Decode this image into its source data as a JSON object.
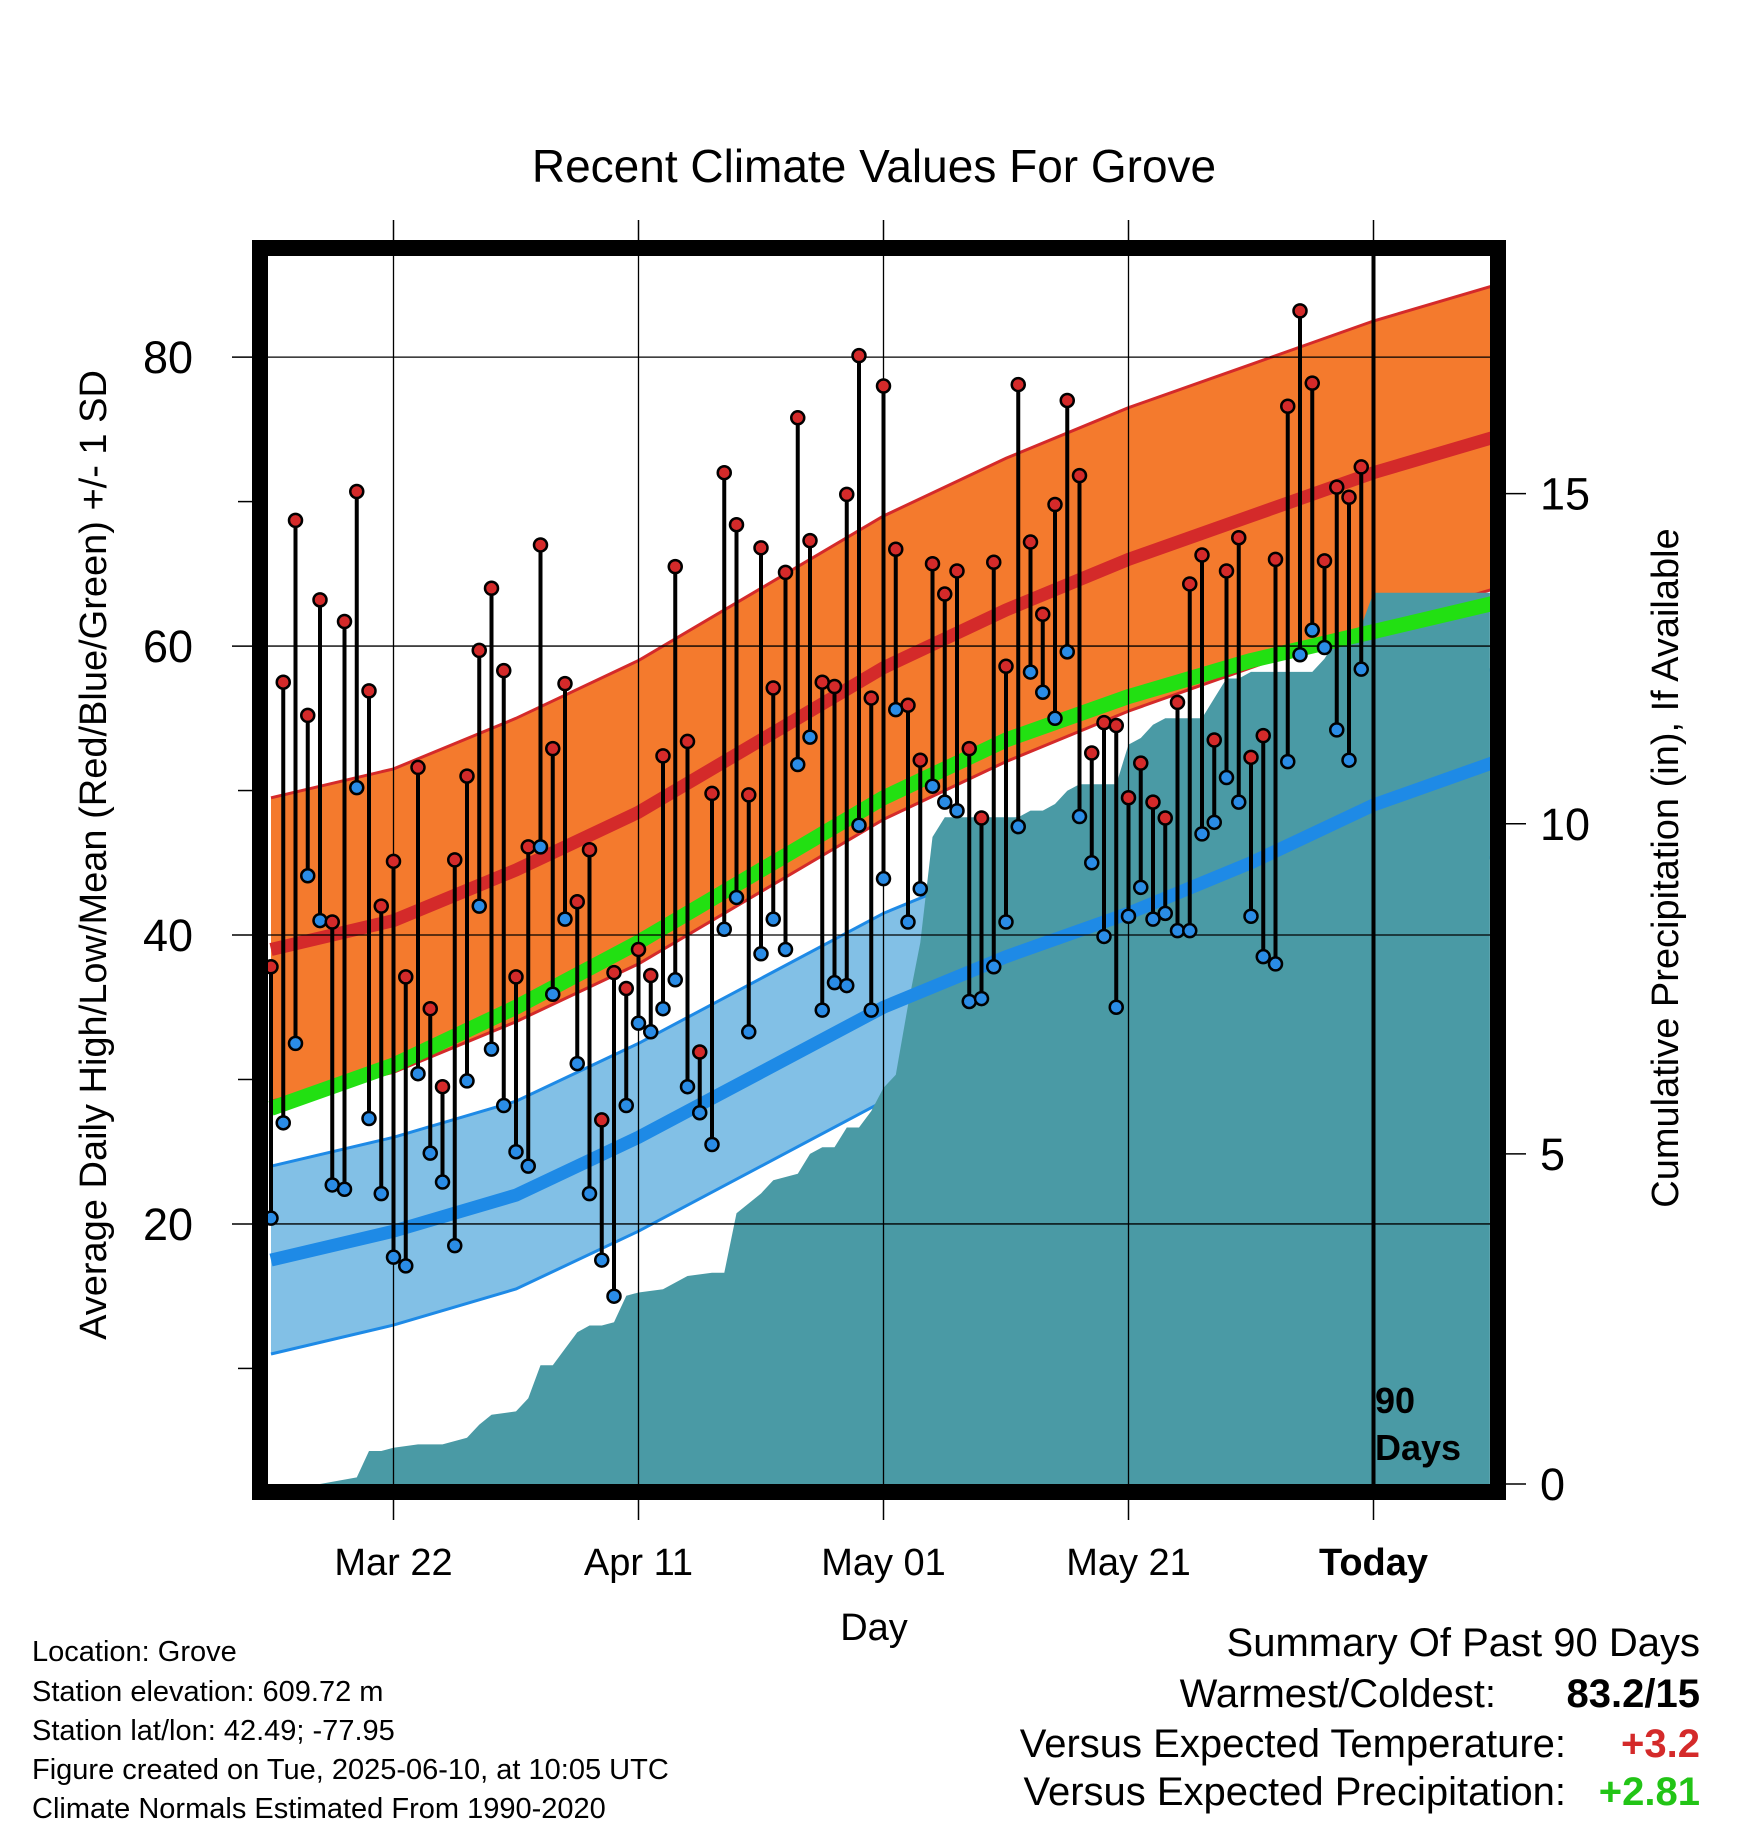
{
  "chart_data": {
    "type": "line",
    "title": "Recent Climate Values For Grove",
    "xlabel": "Day",
    "ylabel": "Average Daily High/Low/Mean (Red/Blue/Green) +/- 1 SD",
    "y2label": "Cumulative Precipitation (in), If Available",
    "x_ticks": [
      "Mar 22",
      "Apr 11",
      "May 01",
      "May 21",
      "Today"
    ],
    "xlim": [
      0,
      100
    ],
    "ylim": [
      2,
      87
    ],
    "y_ticks": [
      20,
      40,
      60,
      80
    ],
    "y2lim": [
      0,
      18.6
    ],
    "y2_ticks": [
      0,
      5,
      10,
      15
    ],
    "today_index": 90,
    "today_label": [
      "90",
      "Days"
    ],
    "grid": true,
    "normal_high": {
      "x": [
        0,
        10,
        20,
        30,
        40,
        50,
        60,
        70,
        80,
        90,
        100
      ],
      "mean": [
        39,
        41,
        44.5,
        48.5,
        53.5,
        58.5,
        62.5,
        66,
        69,
        72,
        74.5
      ],
      "sd": 10.5
    },
    "normal_low": {
      "x": [
        0,
        10,
        20,
        30,
        40,
        50,
        60,
        70,
        80,
        90,
        100
      ],
      "mean": [
        17.5,
        19.5,
        22,
        26,
        30.5,
        35,
        38.5,
        41.5,
        45,
        49,
        52
      ],
      "sd": 6.5
    },
    "normal_mean": {
      "x": [
        0,
        10,
        20,
        30,
        40,
        50,
        60,
        70,
        80,
        90,
        100
      ],
      "mean": [
        28,
        31,
        35,
        39.5,
        44.5,
        49.5,
        53.5,
        56.5,
        59,
        61,
        63
      ]
    },
    "daily": {
      "day": [
        0,
        1,
        2,
        3,
        4,
        5,
        6,
        7,
        8,
        9,
        10,
        11,
        12,
        13,
        14,
        15,
        16,
        17,
        18,
        19,
        20,
        21,
        22,
        23,
        24,
        25,
        26,
        27,
        28,
        29,
        30,
        31,
        32,
        33,
        34,
        35,
        36,
        37,
        38,
        39,
        40,
        41,
        42,
        43,
        44,
        45,
        46,
        47,
        48,
        49,
        50,
        51,
        52,
        53,
        54,
        55,
        56,
        57,
        58,
        59,
        60,
        61,
        62,
        63,
        64,
        65,
        66,
        67,
        68,
        69,
        70,
        71,
        72,
        73,
        74,
        75,
        76,
        77,
        78,
        79,
        80,
        81,
        82,
        83,
        84,
        85,
        86,
        87,
        88,
        89
      ],
      "high": [
        37.8,
        57.5,
        68.7,
        55.2,
        63.2,
        40.9,
        61.7,
        70.7,
        56.9,
        42,
        45.1,
        37.1,
        51.6,
        34.9,
        29.5,
        45.2,
        51,
        59.7,
        64,
        58.3,
        37.1,
        46.1,
        67,
        52.9,
        57.4,
        42.3,
        45.9,
        27.2,
        37.4,
        36.3,
        39,
        37.2,
        52.4,
        65.5,
        53.4,
        31.9,
        49.8,
        72,
        68.4,
        49.7,
        66.8,
        57.1,
        65.1,
        75.8,
        67.3,
        57.5,
        57.2,
        70.5,
        80.1,
        56.4,
        78,
        66.7,
        55.9,
        52.1,
        65.7,
        63.6,
        65.2,
        52.9,
        48.1,
        65.8,
        58.6,
        78.1,
        67.2,
        62.2,
        69.8,
        77,
        71.8,
        52.6,
        54.7,
        54.5,
        49.5,
        51.9,
        49.2,
        48.1,
        56.1,
        64.3,
        66.3,
        53.5,
        65.2,
        67.5,
        52.3,
        53.8,
        66,
        76.6,
        83.2,
        78.2,
        65.9,
        71,
        70.3,
        72.4
      ],
      "low": [
        20.4,
        27,
        32.5,
        44.1,
        41,
        22.7,
        22.4,
        50.2,
        27.3,
        22.1,
        17.7,
        17.1,
        30.4,
        24.9,
        22.9,
        18.5,
        29.9,
        42,
        32.1,
        28.2,
        25,
        24,
        46.1,
        35.9,
        41.1,
        31.1,
        22.1,
        17.5,
        15,
        28.2,
        33.9,
        33.3,
        34.9,
        36.9,
        29.5,
        27.7,
        25.5,
        40.4,
        42.6,
        33.3,
        38.7,
        41.1,
        39,
        51.8,
        53.7,
        34.8,
        36.7,
        36.5,
        47.6,
        34.8,
        43.9,
        55.6,
        40.9,
        43.2,
        50.3,
        49.2,
        48.6,
        35.4,
        35.6,
        37.8,
        40.9,
        47.5,
        58.2,
        56.8,
        55,
        59.6,
        48.2,
        45,
        39.9,
        35,
        41.3,
        43.3,
        41.1,
        41.5,
        40.3,
        40.3,
        47,
        47.8,
        50.9,
        49.2,
        41.3,
        38.5,
        38,
        52,
        59.4,
        61.1,
        59.9,
        54.2,
        52.1,
        58.4
      ]
    },
    "precip": {
      "day": [
        0,
        4,
        7,
        8,
        9,
        10,
        12,
        14,
        16,
        17,
        18,
        20,
        21,
        22,
        23,
        24,
        25,
        26,
        27,
        28,
        29,
        30,
        32,
        34,
        36,
        37,
        38,
        40,
        41,
        43,
        44,
        45,
        46,
        47,
        48,
        49,
        50,
        51,
        52,
        53,
        54,
        55,
        56,
        57,
        59,
        60,
        61,
        62,
        63,
        64,
        65,
        66,
        67,
        68,
        69,
        70,
        71,
        72,
        73,
        74,
        75,
        76,
        77,
        78,
        79,
        80,
        81,
        82,
        83,
        84,
        85,
        86,
        87,
        88,
        89,
        90,
        99.5
      ],
      "cum": [
        0,
        0,
        0.1,
        0.5,
        0.5,
        0.55,
        0.6,
        0.6,
        0.7,
        0.9,
        1.05,
        1.1,
        1.3,
        1.8,
        1.8,
        2.05,
        2.3,
        2.4,
        2.4,
        2.45,
        2.85,
        2.9,
        2.95,
        3.15,
        3.2,
        3.2,
        4.1,
        4.4,
        4.6,
        4.7,
        5,
        5.1,
        5.1,
        5.4,
        5.4,
        5.65,
        6,
        6.2,
        7.25,
        8.2,
        9.8,
        10.1,
        10.1,
        10.1,
        10.1,
        10.1,
        10.1,
        10.2,
        10.2,
        10.3,
        10.5,
        10.6,
        10.6,
        10.6,
        10.6,
        11.2,
        11.3,
        11.5,
        11.6,
        11.6,
        11.6,
        11.6,
        11.9,
        12.2,
        12.2,
        12.3,
        12.3,
        12.3,
        12.3,
        12.3,
        12.3,
        12.5,
        12.8,
        12.9,
        13,
        13.5,
        13.5
      ]
    },
    "colors": {
      "high_band": "#f47a2d",
      "high_edge": "#d42a2a",
      "high_line": "#d42a2a",
      "low_band": "#82c0e6",
      "low_edge": "#1e8ae6",
      "low_line": "#1e8ae6",
      "mean_line": "#22e012",
      "precip_fill": "#4a9aa5",
      "high_dot": "#d42a2a",
      "low_dot": "#2a8ce6"
    }
  },
  "info": {
    "location": "Location: Grove",
    "elevation": "Station elevation: 609.72 m",
    "latlon": "Station lat/lon: 42.49; -77.95",
    "created": "Figure created on Tue, 2025-06-10, at 10:05 UTC",
    "normals": "Climate Normals Estimated From 1990-2020"
  },
  "summary": {
    "title": "Summary Of Past 90 Days",
    "warm_cold_label": "Warmest/Coldest:",
    "warm_cold_value": "83.2/15",
    "temp_label": "Versus Expected Temperature:",
    "temp_value": "+3.2",
    "temp_color": "#d42a2a",
    "precip_label": "Versus Expected Precipitation:",
    "precip_value": "+2.81",
    "precip_color": "#22c416"
  }
}
